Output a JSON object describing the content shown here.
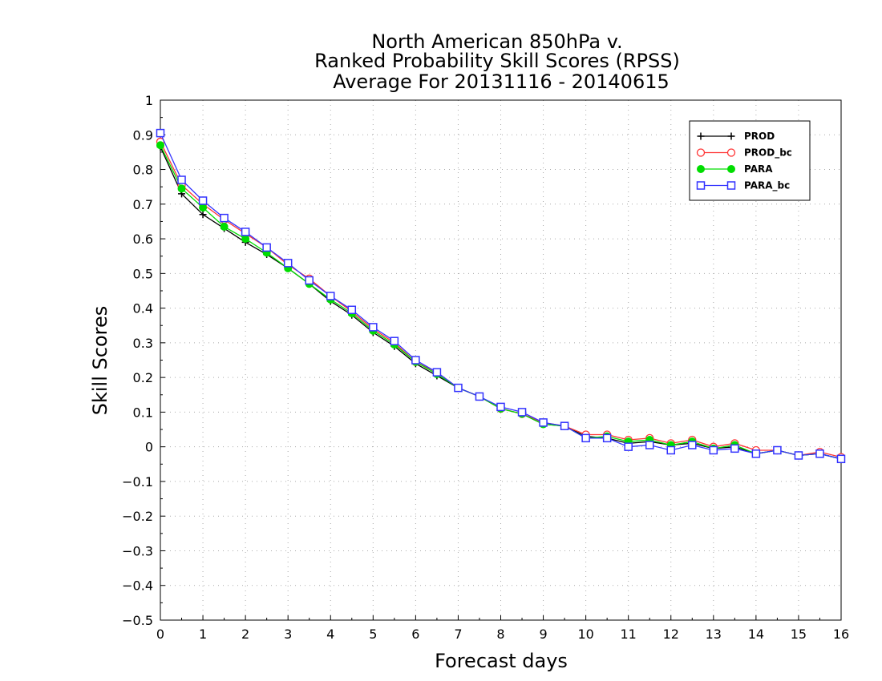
{
  "chart_data": {
    "type": "line",
    "title": [
      "North American 850hPa v.",
      "Ranked Probability Skill Scores (RPSS)",
      "Average For 20131116 - 20140615"
    ],
    "xlabel": "Forecast days",
    "ylabel": "Skill Scores",
    "xlim": [
      0,
      16
    ],
    "ylim": [
      -0.5,
      1
    ],
    "xticks": [
      "0",
      "1",
      "2",
      "3",
      "4",
      "5",
      "6",
      "7",
      "8",
      "9",
      "10",
      "11",
      "12",
      "13",
      "14",
      "15",
      "16"
    ],
    "yticks": [
      "−0.5",
      "−0.4",
      "−0.3",
      "−0.2",
      "−0.1",
      "0",
      "0.1",
      "0.2",
      "0.3",
      "0.4",
      "0.5",
      "0.6",
      "0.7",
      "0.8",
      "0.9",
      "1"
    ],
    "grid": true,
    "legend_position": "top-right",
    "x": [
      0,
      0.5,
      1,
      1.5,
      2,
      2.5,
      3,
      3.5,
      4,
      4.5,
      5,
      5.5,
      6,
      6.5,
      7,
      7.5,
      8,
      8.5,
      9,
      9.5,
      10,
      10.5,
      11,
      11.5,
      12,
      12.5,
      13,
      13.5,
      14,
      14.5,
      15,
      15.5,
      16
    ],
    "series": [
      {
        "name": "PROD",
        "color": "#000000",
        "marker": "plus",
        "values": [
          0.865,
          0.73,
          0.67,
          0.63,
          0.59,
          0.555,
          0.515,
          0.47,
          0.42,
          0.38,
          0.33,
          0.29,
          0.24,
          0.205,
          0.17,
          0.145,
          0.11,
          0.095,
          0.065,
          0.06,
          0.03,
          0.025,
          0.01,
          0.015,
          0.005,
          0.01,
          -0.005,
          0.0,
          -0.02,
          -0.01,
          -0.025,
          -0.02,
          -0.035
        ]
      },
      {
        "name": "PROD_bc",
        "color": "#ff3333",
        "marker": "circle",
        "values": [
          0.88,
          0.755,
          0.7,
          0.655,
          0.615,
          0.575,
          0.525,
          0.485,
          0.435,
          0.39,
          0.34,
          0.3,
          0.245,
          0.215,
          0.17,
          0.145,
          0.11,
          0.095,
          0.07,
          0.06,
          0.035,
          0.035,
          0.02,
          0.025,
          0.01,
          0.02,
          0.0,
          0.01,
          -0.01,
          -0.01,
          -0.025,
          -0.015,
          -0.03
        ]
      },
      {
        "name": "PARA",
        "color": "#00dd00",
        "marker": "dot",
        "values": [
          0.87,
          0.745,
          0.69,
          0.635,
          0.6,
          0.56,
          0.515,
          0.47,
          0.425,
          0.385,
          0.335,
          0.295,
          0.245,
          0.21,
          0.17,
          0.145,
          0.11,
          0.095,
          0.065,
          0.06,
          0.025,
          0.03,
          0.015,
          0.02,
          0.005,
          0.015,
          -0.005,
          0.005,
          -0.02,
          -0.01,
          -0.025,
          -0.02,
          -0.035
        ]
      },
      {
        "name": "PARA_bc",
        "color": "#3333ff",
        "marker": "square",
        "values": [
          0.905,
          0.77,
          0.71,
          0.66,
          0.62,
          0.575,
          0.53,
          0.48,
          0.435,
          0.395,
          0.345,
          0.305,
          0.25,
          0.215,
          0.17,
          0.145,
          0.115,
          0.1,
          0.07,
          0.06,
          0.025,
          0.025,
          0.0,
          0.005,
          -0.01,
          0.005,
          -0.01,
          -0.005,
          -0.02,
          -0.01,
          -0.025,
          -0.02,
          -0.035
        ]
      }
    ]
  }
}
